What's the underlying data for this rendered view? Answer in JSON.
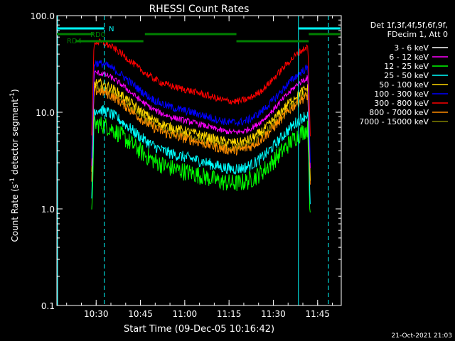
{
  "chart_data": {
    "type": "line",
    "title": "RHESSI Count Rates",
    "xlabel": "Start Time (09-Dec-05 10:16:42)",
    "ylabel_main": "Count Rate (s",
    "ylabel_sup1": "-1",
    "ylabel_mid": " detector segment",
    "ylabel_sup2": "-1",
    "ylabel_end": ")",
    "yscale": "log",
    "ylim": [
      0.1,
      100.0
    ],
    "xlim": [
      "10:16:42",
      "11:53:00"
    ],
    "x_ticks": [
      "10:30",
      "10:45",
      "11:00",
      "11:15",
      "11:30",
      "11:45"
    ],
    "y_ticks": [
      "100.0",
      "10.0",
      "1.0",
      "0.1"
    ],
    "legend_header": [
      "Det 1f,3f,4f,5f,6f,9f,",
      "FDecim 1, Att 0"
    ],
    "series": [
      {
        "name": "3 - 6 keV",
        "color": "#000000"
      },
      {
        "name": "6 - 12 keV",
        "color": "#ff00ff"
      },
      {
        "name": "12 - 25 keV",
        "color": "#00ff00"
      },
      {
        "name": "25 - 50 keV",
        "color": "#00ffff"
      },
      {
        "name": "50 - 100 keV",
        "color": "#ffd700"
      },
      {
        "name": "100 - 300 keV",
        "color": "#0000ff"
      },
      {
        "name": "300 - 800 keV",
        "color": "#ff0000"
      },
      {
        "name": "800 - 7000 keV",
        "color": "#ff8c00"
      },
      {
        "name": "7000 - 15000 keV",
        "color": "#808000"
      }
    ],
    "flags": {
      "N_label": "N",
      "RD0_label": "RD0",
      "RD4_label": "RD4"
    },
    "footer_date": "21-Oct-2021 21:03"
  }
}
